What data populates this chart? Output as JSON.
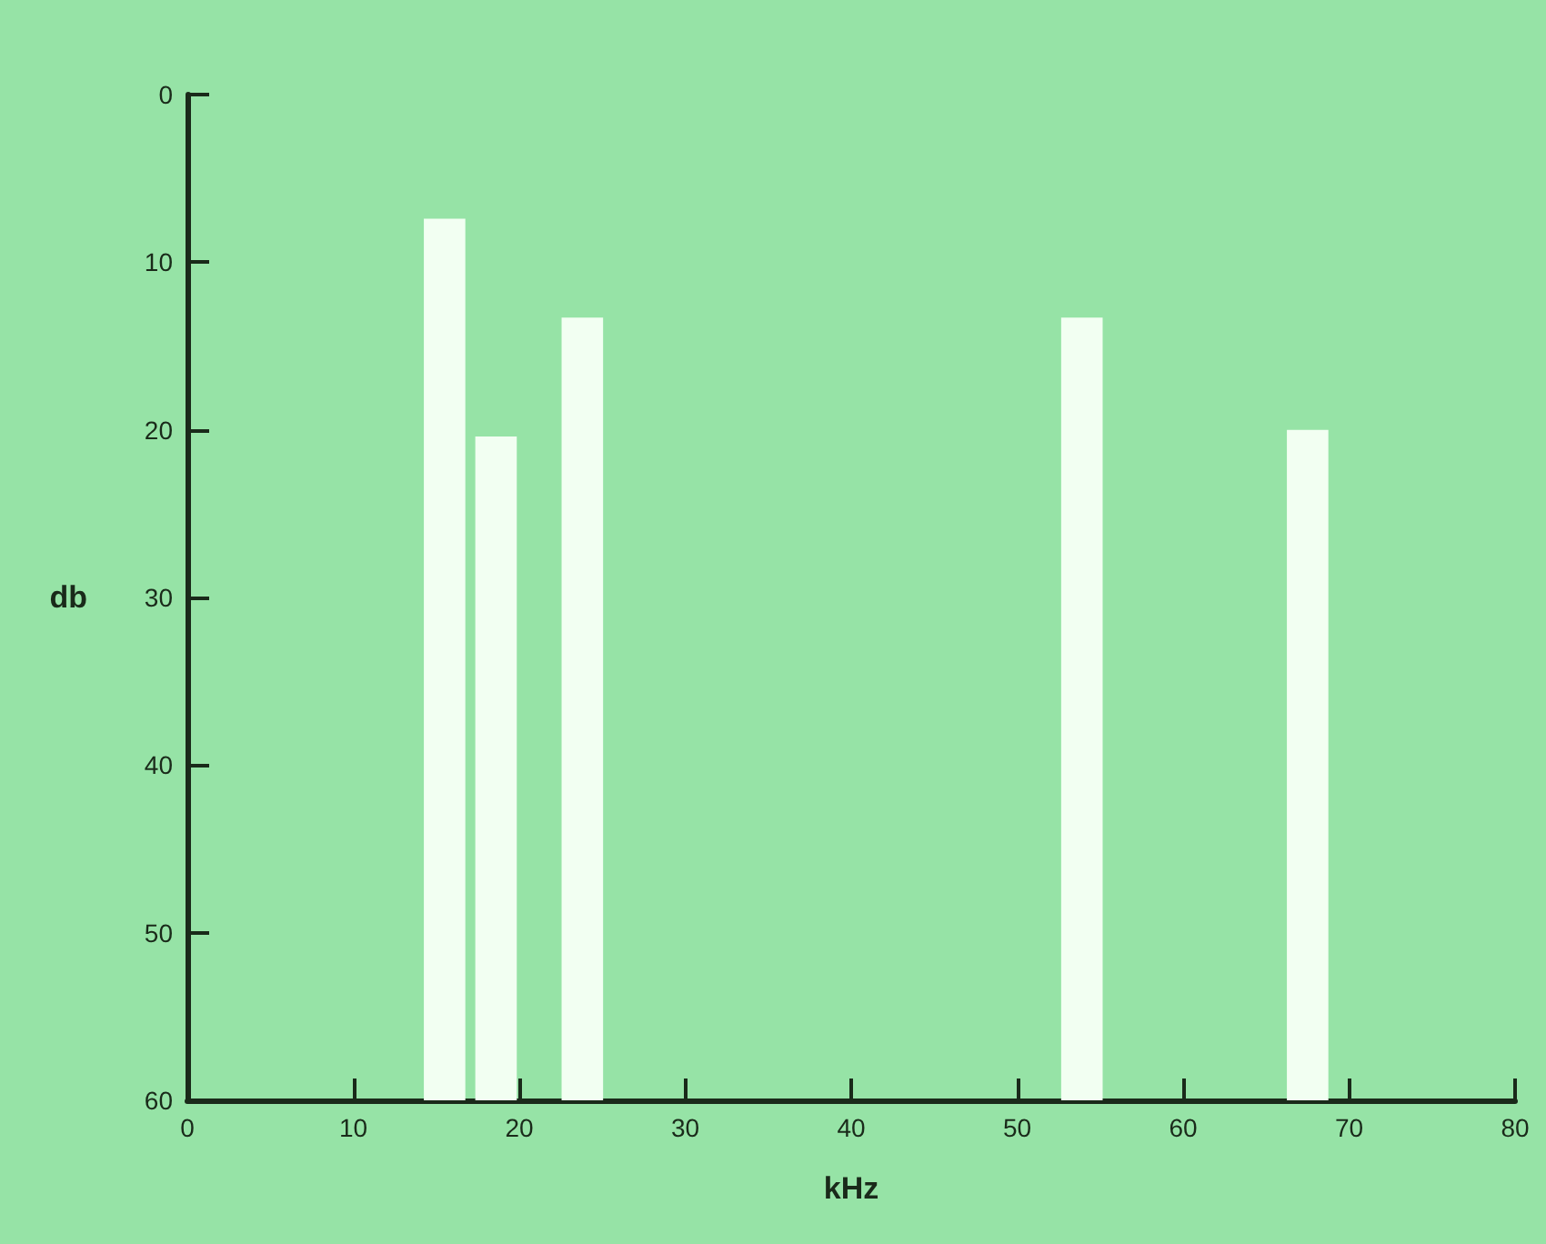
{
  "chart_data": {
    "type": "bar",
    "xlabel": "kHz",
    "ylabel": "db",
    "x": [
      15.5,
      18.6,
      23.8,
      53.9,
      67.5
    ],
    "base": [
      60,
      60,
      60,
      60,
      60
    ],
    "values": [
      -52.6,
      -39.6,
      -46.7,
      -46.7,
      -40
    ],
    "color": "#f2fff2",
    "xlim": [
      0,
      80
    ],
    "xticks": [
      0,
      10,
      20,
      30,
      40,
      50,
      60,
      70,
      80
    ],
    "ylim": [
      60,
      0
    ],
    "yticks": [
      0,
      10,
      20,
      30,
      40,
      50,
      60
    ],
    "grid": false
  }
}
